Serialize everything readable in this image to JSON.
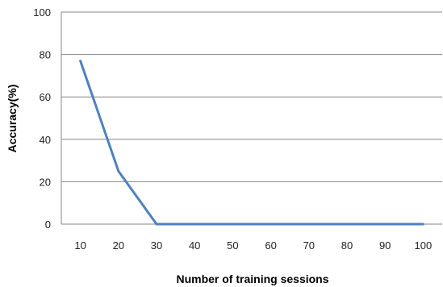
{
  "chart_data": {
    "type": "line",
    "title": "",
    "xlabel": "Number of training sessions",
    "ylabel": "Accuracy(%)",
    "x": [
      10,
      20,
      30,
      40,
      50,
      60,
      70,
      80,
      90,
      100
    ],
    "x_tick_labels": [
      "10",
      "20",
      "30",
      "40",
      "50",
      "60",
      "70",
      "80",
      "90",
      "100"
    ],
    "y_tick_labels": [
      "0",
      "20",
      "40",
      "60",
      "80",
      "100"
    ],
    "y_ticks": [
      0,
      20,
      40,
      60,
      80,
      100
    ],
    "ylim": [
      0,
      100
    ],
    "grid": "horizontal",
    "legend": "none",
    "series": [
      {
        "values": [
          77,
          25,
          0,
          0,
          0,
          0,
          0,
          0,
          0,
          0
        ],
        "color": "#4f81bd"
      }
    ]
  }
}
